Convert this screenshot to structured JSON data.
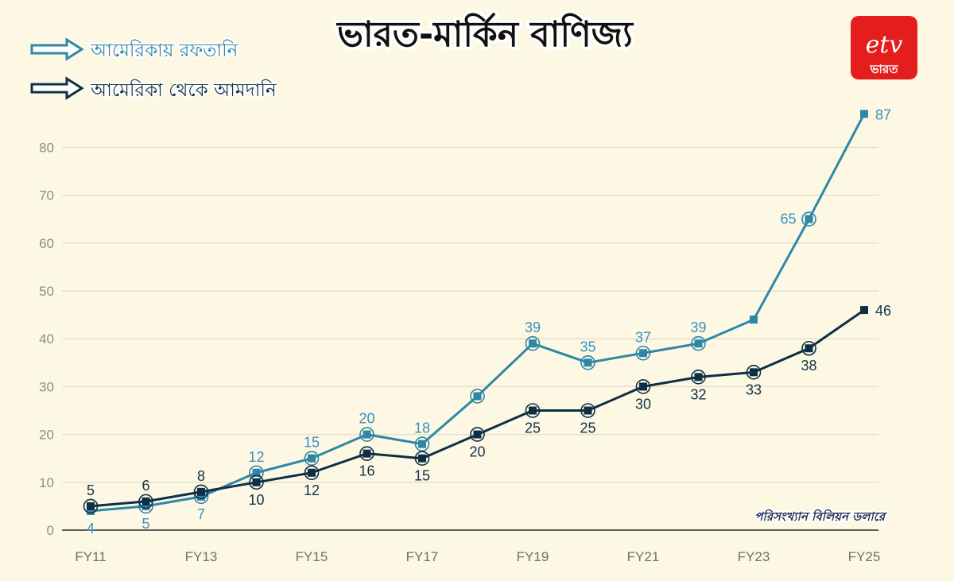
{
  "header": {
    "title": "ভারত-মার্কিন বাণিজ্য",
    "logo_mark": "etv",
    "logo_text": "ভারত"
  },
  "legend": {
    "items": [
      {
        "label": "আমেরিকায় রফতানি",
        "color": "#2f87a8"
      },
      {
        "label": "আমেরিকা থেকে আমদানি",
        "color": "#0e2f45"
      }
    ]
  },
  "note": "পরিসংখ্যান বিলিয়ন ডলারে",
  "chart_data": {
    "type": "line",
    "title": "ভারত-মার্কিন বাণিজ্য",
    "x": [
      "FY11",
      "FY12",
      "FY13",
      "FY14",
      "FY15",
      "FY16",
      "FY17",
      "FY18",
      "FY19",
      "FY20",
      "FY21",
      "FY22",
      "FY23",
      "FY24",
      "FY25"
    ],
    "x_tick_labels": [
      "FY11",
      "FY13",
      "FY15",
      "FY17",
      "FY19",
      "FY21",
      "FY23",
      "FY25"
    ],
    "y_ticks": [
      0,
      10,
      20,
      30,
      40,
      50,
      60,
      70,
      80
    ],
    "ylim": [
      0,
      87
    ],
    "grid": true,
    "legend_position": "top-left",
    "series": [
      {
        "name": "আমেরিকায় রফতানি",
        "color": "#2f87a8",
        "label_color": "#3a8fbf",
        "values": [
          4,
          5,
          7,
          12,
          15,
          20,
          18,
          28,
          39,
          35,
          37,
          39,
          44,
          65,
          87
        ],
        "labels": [
          "4",
          "5",
          "7",
          "12",
          "15",
          "20",
          "18",
          "",
          "39",
          "35",
          "37",
          "39",
          "",
          "65",
          "87"
        ]
      },
      {
        "name": "আমেরিকা থেকে আমদানি",
        "color": "#0e2f45",
        "label_color": "#123247",
        "values": [
          5,
          6,
          8,
          10,
          12,
          16,
          15,
          20,
          25,
          25,
          30,
          32,
          33,
          38,
          46
        ],
        "labels": [
          "5",
          "6",
          "8",
          "10",
          "12",
          "16",
          "15",
          "20",
          "25",
          "25",
          "30",
          "32",
          "33",
          "38",
          "46"
        ]
      }
    ]
  }
}
